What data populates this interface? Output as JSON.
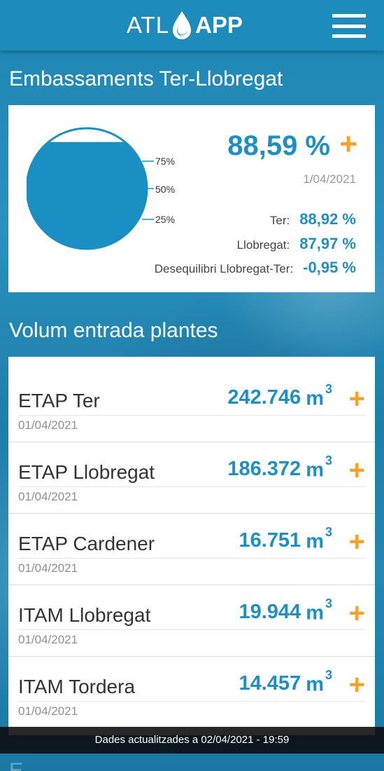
{
  "header": {
    "logo_left": "ATL",
    "logo_right": "APP",
    "logo_icon": "water-drop-icon",
    "menu_icon": "hamburger-menu-icon"
  },
  "reservoirs": {
    "title": "Embassaments Ter-Llobregat",
    "total_pct": "88,59 %",
    "fill_level": 0.8859,
    "date": "1/04/2021",
    "ticks": [
      "75%",
      "50%",
      "25%"
    ],
    "stats": [
      {
        "label": "Ter:",
        "value": "88,92 %"
      },
      {
        "label": "Llobregat:",
        "value": "87,97 %"
      },
      {
        "label": "Desequilibri Llobregat-Ter:",
        "value": "-0,95 %"
      }
    ],
    "plus_label": "+"
  },
  "plants": {
    "title": "Volum entrada plantes",
    "unit": "m",
    "unit_exp": "3",
    "plus_label": "+",
    "items": [
      {
        "name": "ETAP Ter",
        "value": "242.746",
        "date": "01/04/2021"
      },
      {
        "name": "ETAP Llobregat",
        "value": "186.372",
        "date": "01/04/2021"
      },
      {
        "name": "ETAP Cardener",
        "value": "16.751",
        "date": "01/04/2021"
      },
      {
        "name": "ITAM Llobregat",
        "value": "19.944",
        "date": "01/04/2021"
      },
      {
        "name": "ITAM Tordera",
        "value": "14.457",
        "date": "01/04/2021"
      }
    ]
  },
  "footer": {
    "updated": "Dades actualitzades a 02/04/2021 - 19:59"
  },
  "next_section_title": "E",
  "colors": {
    "accent_blue": "#1f8fc3",
    "plus_orange": "#f7a12a",
    "header_blue": "#1d8cbd"
  }
}
